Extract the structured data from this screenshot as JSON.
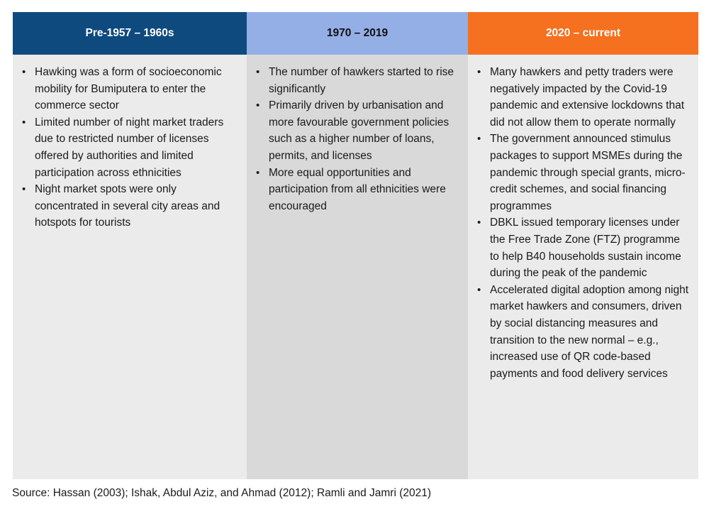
{
  "columns": [
    {
      "header": "Pre-1957 – 1960s",
      "bullets": [
        "Hawking was a form of socioeconomic mobility for Bumiputera to enter the commerce sector",
        "Limited number of night market traders due to restricted number of licenses offered by authorities and limited participation across ethnicities",
        "Night market spots were only concentrated in several city areas and hotspots for tourists"
      ]
    },
    {
      "header": "1970 – 2019",
      "bullets": [
        "The number of hawkers started to rise significantly",
        "Primarily driven by urbanisation and more favourable government policies such as a higher number of loans, permits, and licenses",
        "More equal opportunities and participation from all ethnicities were encouraged"
      ]
    },
    {
      "header": "2020 – current",
      "bullets": [
        "Many hawkers and petty traders were negatively impacted by the Covid-19 pandemic and extensive lockdowns that did not allow them to operate normally",
        "The government announced stimulus packages to support MSMEs during the pandemic through special grants, micro-credit schemes, and social financing programmes",
        "DBKL issued temporary licenses under the Free Trade Zone (FTZ) programme to help B40 households sustain income during the peak of the pandemic",
        "Accelerated digital adoption among night market hawkers and consumers, driven by social distancing measures and transition to the new normal – e.g., increased use of QR code-based payments and food delivery services"
      ]
    }
  ],
  "source": "Source: Hassan (2003); Ishak, Abdul Aziz, and Ahmad (2012); Ramli and Jamri (2021)",
  "colors": {
    "header_1": "#0e4a7e",
    "header_2": "#94aee6",
    "header_3": "#f5701f",
    "body_light": "#ebebeb",
    "body_dark": "#d9d9d9"
  }
}
